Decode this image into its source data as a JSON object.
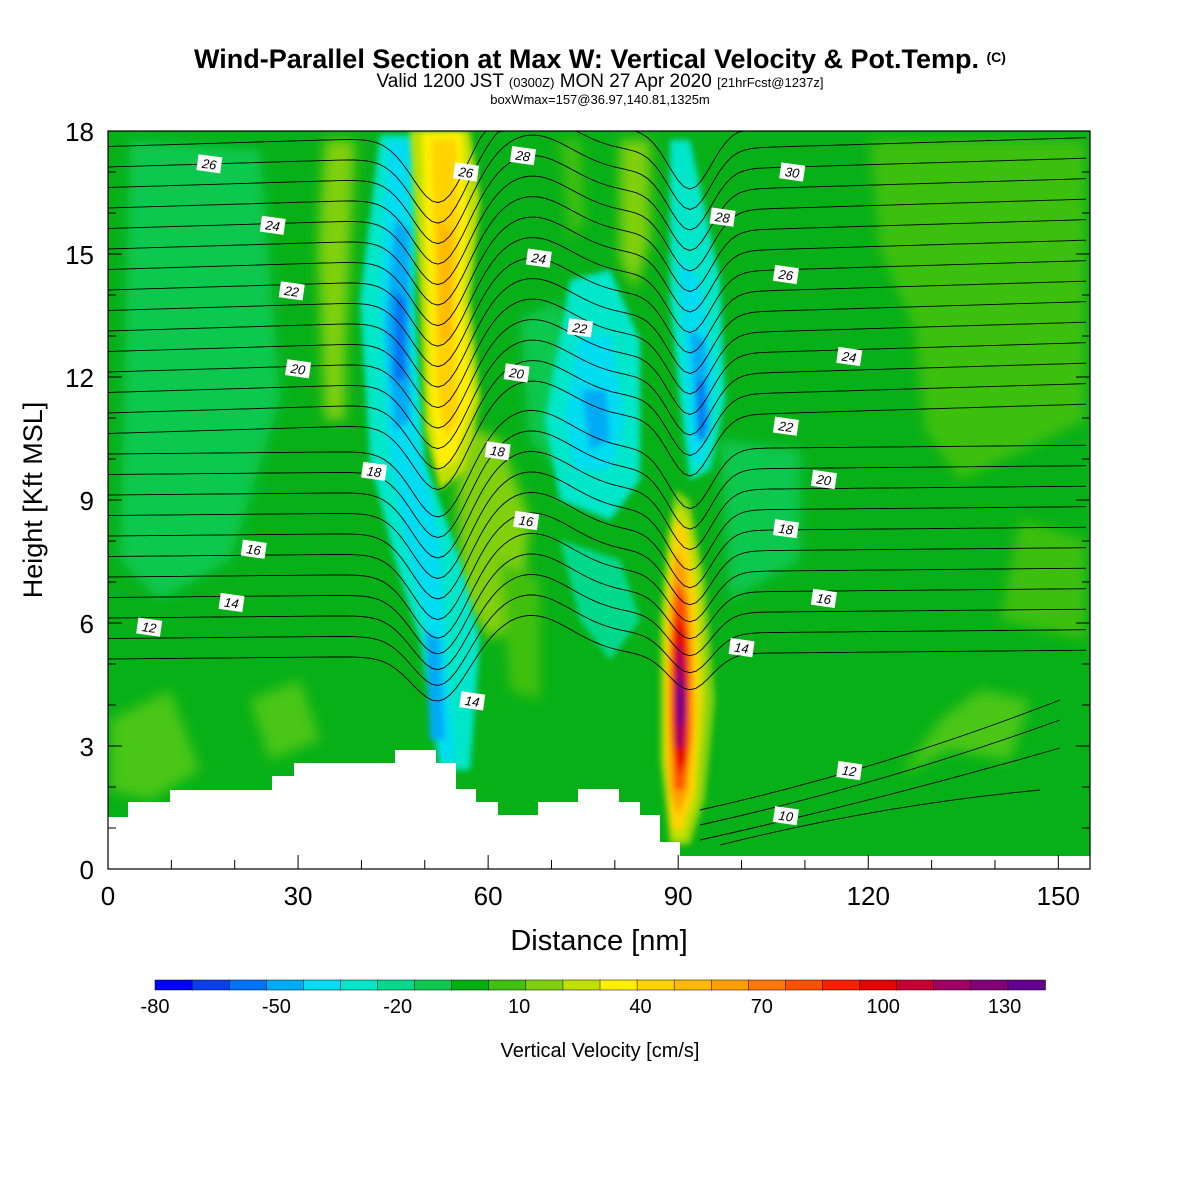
{
  "header": {
    "title": "Wind-Parallel Section at Max W: Vertical Velocity & Pot.Temp.",
    "copyright": "(C)",
    "valid_prefix": "Valid 1200 JST",
    "valid_utc": "(0300Z)",
    "valid_date": "MON 27 Apr 2020",
    "forecast": "[21hrFcst@1237z]",
    "boxinfo": "boxWmax=157@36.97,140.81,1325m"
  },
  "chart_data": {
    "type": "heatmap",
    "title": "Wind-Parallel Section at Max W: Vertical Velocity & Pot.Temp.",
    "xlabel": "Distance [nm]",
    "ylabel": "Height [Kft MSL]",
    "xlim": [
      0,
      155
    ],
    "ylim": [
      0,
      18
    ],
    "x_ticks": [
      0,
      30,
      60,
      90,
      120,
      150
    ],
    "y_ticks": [
      0,
      3,
      6,
      9,
      12,
      15,
      18
    ],
    "colorbar": {
      "label": "Vertical Velocity [cm/s]",
      "tick_labels": [
        "-80",
        "-50",
        "-20",
        "10",
        "40",
        "70",
        "100",
        "130"
      ],
      "tick_values": [
        -80,
        -50,
        -20,
        10,
        40,
        70,
        100,
        130
      ],
      "range": [
        -80,
        140
      ],
      "step": 10,
      "colors": [
        "#0000ff",
        "#0a3ff0",
        "#0073f5",
        "#00aaf5",
        "#00dcf0",
        "#00e6c8",
        "#00d98c",
        "#10c850",
        "#00b010",
        "#40c010",
        "#80d010",
        "#c0e000",
        "#ffef00",
        "#ffd200",
        "#ffba00",
        "#ffa000",
        "#ff7800",
        "#ff5000",
        "#ff1e00",
        "#e60000",
        "#c80032",
        "#a00064",
        "#800078",
        "#640090"
      ]
    },
    "max_w": {
      "value": 157,
      "unit": "cm/s",
      "lat": 36.97,
      "lon": 140.81,
      "height_m": 1325,
      "x": 90.5,
      "y": 4.6
    },
    "theta_contour_labels": [
      {
        "text": "26",
        "x": 16,
        "y": 17.2
      },
      {
        "text": "24",
        "x": 26,
        "y": 15.7
      },
      {
        "text": "22",
        "x": 29,
        "y": 14.1
      },
      {
        "text": "20",
        "x": 30,
        "y": 12.2
      },
      {
        "text": "18",
        "x": 42,
        "y": 9.7
      },
      {
        "text": "16",
        "x": 23,
        "y": 7.8
      },
      {
        "text": "14",
        "x": 19.5,
        "y": 6.5
      },
      {
        "text": "12",
        "x": 6.5,
        "y": 5.9
      },
      {
        "text": "26",
        "x": 56.5,
        "y": 17.0
      },
      {
        "text": "28",
        "x": 65.5,
        "y": 17.4
      },
      {
        "text": "24",
        "x": 68,
        "y": 14.9
      },
      {
        "text": "22",
        "x": 74.5,
        "y": 13.2
      },
      {
        "text": "20",
        "x": 64.5,
        "y": 12.1
      },
      {
        "text": "18",
        "x": 61.5,
        "y": 10.2
      },
      {
        "text": "16",
        "x": 66,
        "y": 8.5
      },
      {
        "text": "14",
        "x": 57.5,
        "y": 4.1
      },
      {
        "text": "30",
        "x": 108,
        "y": 17.0
      },
      {
        "text": "28",
        "x": 97,
        "y": 15.9
      },
      {
        "text": "26",
        "x": 107,
        "y": 14.5
      },
      {
        "text": "24",
        "x": 117,
        "y": 12.5
      },
      {
        "text": "22",
        "x": 107,
        "y": 10.8
      },
      {
        "text": "20",
        "x": 113,
        "y": 9.5
      },
      {
        "text": "18",
        "x": 107,
        "y": 8.3
      },
      {
        "text": "16",
        "x": 113,
        "y": 6.6
      },
      {
        "text": "14",
        "x": 100,
        "y": 5.4
      },
      {
        "text": "12",
        "x": 117,
        "y": 2.4
      },
      {
        "text": "10",
        "x": 107,
        "y": 1.3
      }
    ]
  }
}
